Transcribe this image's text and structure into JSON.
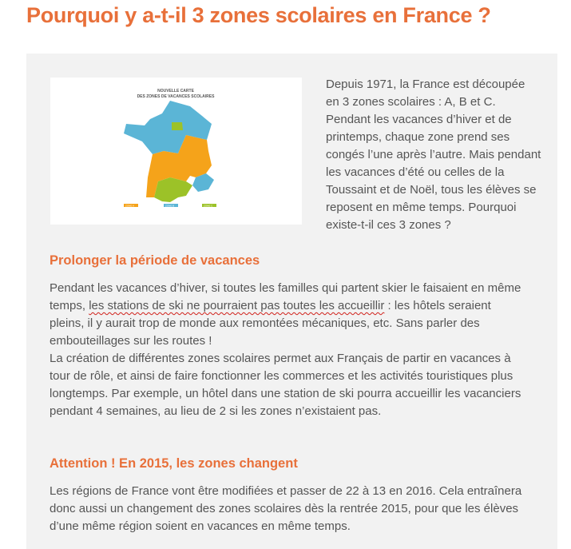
{
  "title": "Pourquoi y a-t-il 3 zones scolaires en France ?",
  "map": {
    "title_line1": "NOUVELLE CARTE",
    "title_line2": "DES ZONES DE VACANCES SCOLAIRES",
    "zones": [
      "ZONE A",
      "ZONE B",
      "ZONE C"
    ],
    "colors": {
      "zone_a": "#f5a31a",
      "zone_b": "#5bb5d6",
      "zone_c": "#9cc228"
    }
  },
  "intro": "Depuis 1971, la France est découpée en 3 zones scolaires : A, B et C. Pendant les vacances d’hiver et de printemps, chaque zone prend ses congés l’une après l’autre. Mais pendant les vacances d’été ou celles de la Toussaint et de Noël, tous les élèves se reposent en même temps. Pourquoi existe-t-il ces 3 zones ?",
  "section1": {
    "heading": "Prolonger la période de vacances",
    "p1_start": "Pendant les vacances d’hiver, si toutes les familles qui partent skier le faisaient en même temps, ",
    "p1_underlined": "les stations de ski ne pourraient pas toutes les accueillir",
    "p1_end": " : les hôtels seraient pleins, il y aurait trop de monde aux remontées mécaniques, etc. Sans parler des embouteillages sur les routes !",
    "p2": "La création de différentes zones scolaires permet aux Français de partir en vacances à tour de rôle, et ainsi de faire fonctionner les commerces et les activités touristiques plus longtemps. Par exemple, un hôtel dans une station de ski pourra accueillir les vacanciers pendant 4 semaines, au lieu de 2 si les zones n’existaient pas."
  },
  "section2": {
    "heading": "Attention ! En 2015, les zones changent",
    "p1": "Les régions de France vont être modifiées et passer de 22 à 13 en 2016. Cela entraînera donc aussi un changement des zones scolaires dès la rentrée 2015, pour que les élèves d’une même région soient en vacances en même temps."
  }
}
